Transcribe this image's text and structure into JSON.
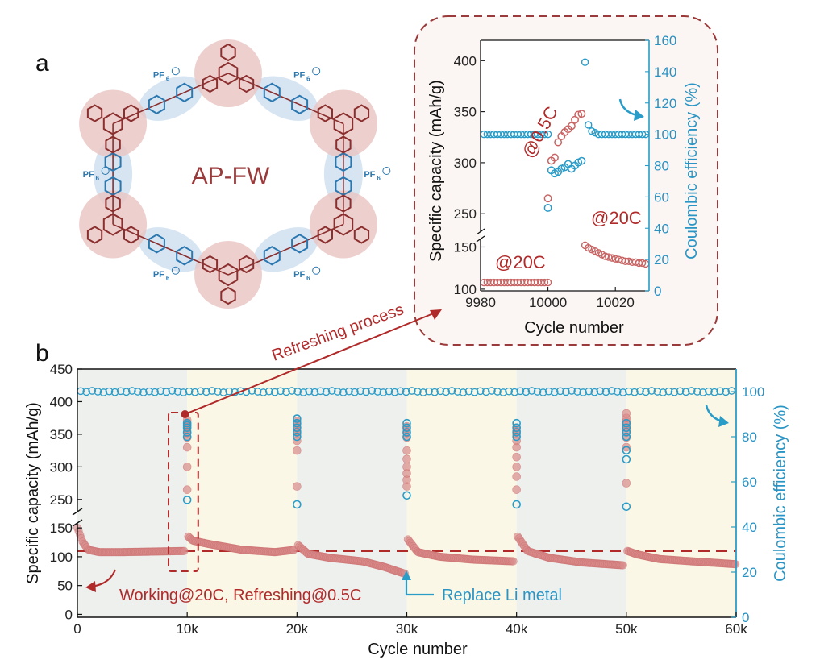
{
  "labels": {
    "panel_a": "a",
    "panel_b": "b",
    "structure_name": "AP-FW",
    "pf6": "PF",
    "pf6_sub": "6",
    "refreshing_process": "Refreshing process",
    "working_refreshing": "Working@20C, Refreshing@0.5C",
    "replace_li": "Replace Li metal",
    "inset_05c": "@0.5C",
    "inset_20c_left": "@20C",
    "inset_20c_right": "@20C"
  },
  "colors": {
    "capacity": "#c86464",
    "capacity_fill": "#d98a8a",
    "ce": "#2a9cc8",
    "frame_red": "#9a3a3a",
    "band_gray": "#eef0ee",
    "band_yellow": "#fbf7e6",
    "inset_bg": "#fbf6f3"
  },
  "chart_data": [
    {
      "id": "main",
      "type": "scatter",
      "xlabel": "Cycle number",
      "ylabel": "Specific capacity (mAh/g)",
      "y2label": "Coulombic efficiency (%)",
      "xlim": [
        0,
        60000
      ],
      "xticks": [
        "0",
        "10k",
        "20k",
        "30k",
        "40k",
        "50k",
        "60k"
      ],
      "ylim_lower": [
        -5,
        160
      ],
      "ylim_upper": [
        230,
        450
      ],
      "yticks_lower": [
        "0",
        "50",
        "100",
        "150"
      ],
      "yticks_upper": [
        "250",
        "300",
        "350",
        "400",
        "450"
      ],
      "y2lim": [
        0,
        110
      ],
      "y2ticks": [
        "0",
        "20",
        "40",
        "60",
        "80",
        "100"
      ],
      "reference_line_capacity": 110,
      "capacity_segments": [
        {
          "x": [
            0,
            500,
            1000,
            2000,
            4000,
            7000,
            9800
          ],
          "y": [
            150,
            125,
            112,
            108,
            108,
            109,
            110
          ]
        },
        {
          "x": [
            10100,
            10500,
            12000,
            15000,
            18000,
            19800
          ],
          "y": [
            135,
            128,
            122,
            112,
            108,
            112
          ]
        },
        {
          "x": [
            20100,
            21000,
            23000,
            26000,
            28000,
            29900
          ],
          "y": [
            120,
            105,
            98,
            92,
            82,
            70
          ]
        },
        {
          "x": [
            30100,
            31000,
            33000,
            36000,
            39800
          ],
          "y": [
            130,
            108,
            100,
            95,
            92
          ]
        },
        {
          "x": [
            40100,
            41000,
            43000,
            46000,
            49800
          ],
          "y": [
            135,
            110,
            98,
            90,
            85
          ]
        },
        {
          "x": [
            50100,
            51000,
            53000,
            56000,
            60000
          ],
          "y": [
            110,
            104,
            96,
            92,
            87
          ]
        }
      ],
      "capacity_refresh_points": [
        {
          "x": 10000,
          "y": [
            265,
            300,
            330,
            345,
            352,
            358,
            362,
            365,
            368,
            372
          ]
        },
        {
          "x": 20000,
          "y": [
            270,
            325,
            340,
            350,
            355,
            360,
            365,
            370
          ]
        },
        {
          "x": 30000,
          "y": [
            270,
            280,
            290,
            300,
            312,
            325,
            345,
            352,
            358,
            362
          ]
        },
        {
          "x": 40000,
          "y": [
            265,
            285,
            300,
            315,
            330,
            340,
            350,
            355,
            360
          ]
        },
        {
          "x": 50000,
          "y": [
            275,
            330,
            345,
            355,
            360,
            365,
            370,
            375,
            382
          ]
        }
      ],
      "ce_baseline": 100,
      "ce_refresh_points": [
        {
          "x": 10000,
          "y": [
            52,
            80,
            82,
            84,
            85,
            86
          ]
        },
        {
          "x": 20000,
          "y": [
            50,
            80,
            82,
            84,
            86,
            88
          ]
        },
        {
          "x": 30000,
          "y": [
            54,
            80,
            82,
            84,
            86
          ]
        },
        {
          "x": 40000,
          "y": [
            50,
            80,
            82,
            84,
            86
          ]
        },
        {
          "x": 50000,
          "y": [
            49,
            70,
            74,
            80,
            82,
            84,
            86
          ]
        }
      ]
    },
    {
      "id": "inset",
      "type": "scatter",
      "xlabel": "Cycle number",
      "ylabel": "Specific capacity (mAh/g)",
      "y2label": "Coulombic efficiency (%)",
      "xlim": [
        9980,
        10030
      ],
      "xticks": [
        "9980",
        "10000",
        "10020"
      ],
      "ylim_lower": [
        98,
        160
      ],
      "ylim_upper": [
        232,
        420
      ],
      "yticks_lower": [
        "100",
        "150"
      ],
      "yticks_upper": [
        "250",
        "300",
        "350",
        "400"
      ],
      "y2lim": [
        0,
        160
      ],
      "y2ticks": [
        "0",
        "20",
        "40",
        "60",
        "80",
        "100",
        "120",
        "140",
        "160"
      ],
      "capacity_20c_before": {
        "x_start": 9981,
        "x_end": 10000,
        "y": 108
      },
      "capacity_05c": {
        "x": [
          10000,
          10001,
          10002,
          10003,
          10004,
          10005,
          10006,
          10007,
          10008,
          10009,
          10010
        ],
        "y": [
          265,
          302,
          305,
          320,
          326,
          330,
          333,
          336,
          342,
          347,
          348
        ]
      },
      "capacity_20c_after": {
        "x": [
          10011,
          10012,
          10013,
          10014,
          10015,
          10016,
          10017,
          10018,
          10019,
          10020,
          10021,
          10022,
          10023,
          10024,
          10025,
          10026,
          10027,
          10028,
          10029
        ],
        "y": [
          152,
          149,
          147,
          145,
          143,
          141,
          139,
          138,
          137,
          136,
          135,
          134,
          133,
          133,
          132,
          132,
          131,
          131,
          130
        ]
      },
      "ce_before": {
        "x_start": 9981,
        "x_end": 10000,
        "y": 100
      },
      "ce_05c": {
        "x": [
          10000,
          10001,
          10002,
          10003,
          10004,
          10005,
          10006,
          10007,
          10008,
          10009,
          10010
        ],
        "y": [
          53,
          77,
          75,
          76,
          78,
          79,
          81,
          78,
          80,
          82,
          83
        ]
      },
      "ce_after": {
        "x": [
          10011,
          10012,
          10013,
          10014,
          10015,
          10016,
          10017,
          10018,
          10019,
          10020,
          10021,
          10022,
          10023,
          10024,
          10025,
          10026,
          10027,
          10028,
          10029
        ],
        "y": [
          146,
          106,
          102,
          101,
          100,
          100,
          100,
          100,
          100,
          100,
          100,
          100,
          100,
          100,
          100,
          100,
          100,
          100,
          100
        ]
      }
    }
  ]
}
